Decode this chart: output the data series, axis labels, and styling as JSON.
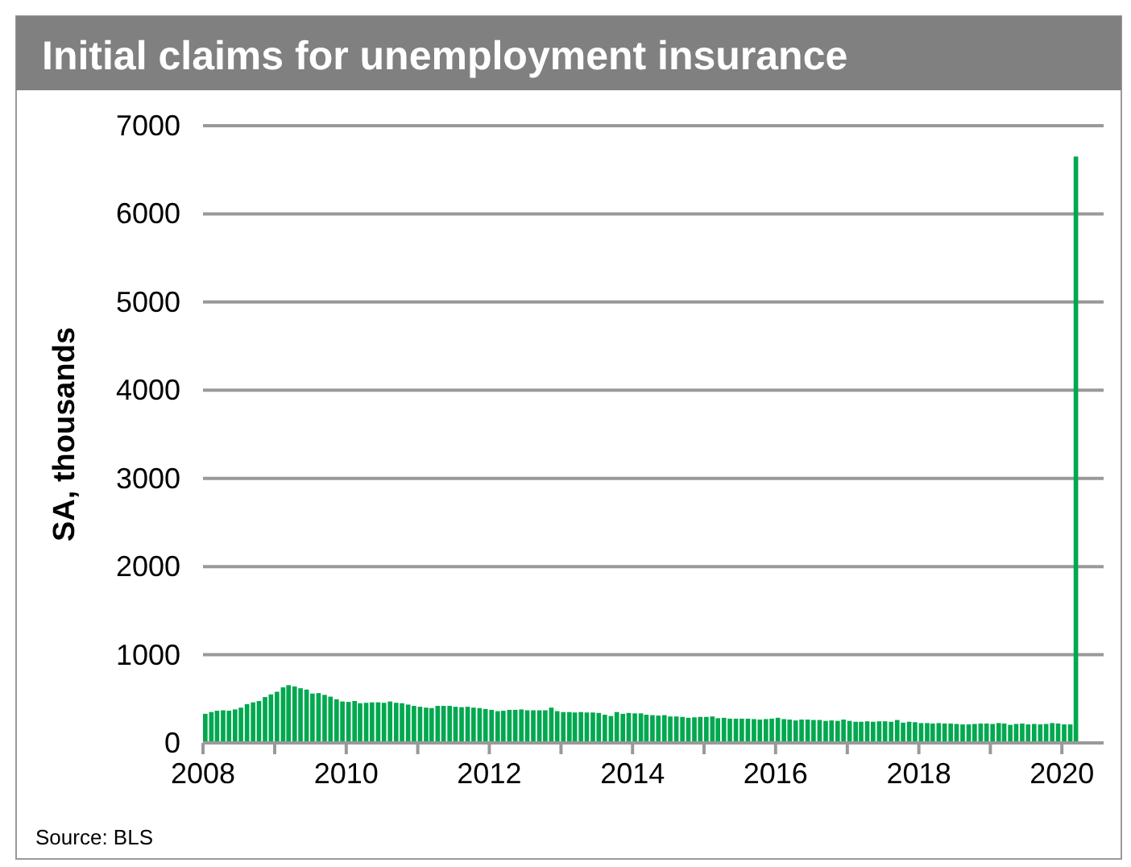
{
  "chart_data": {
    "type": "bar",
    "title": "Initial claims for unemployment insurance",
    "ylabel": "SA, thousands",
    "annotations": [
      "Source: BLS"
    ],
    "x": [
      "2008-01",
      "2008-02",
      "2008-03",
      "2008-04",
      "2008-05",
      "2008-06",
      "2008-07",
      "2008-08",
      "2008-09",
      "2008-10",
      "2008-11",
      "2008-12",
      "2009-01",
      "2009-02",
      "2009-03",
      "2009-04",
      "2009-05",
      "2009-06",
      "2009-07",
      "2009-08",
      "2009-09",
      "2009-10",
      "2009-11",
      "2009-12",
      "2010-01",
      "2010-02",
      "2010-03",
      "2010-04",
      "2010-05",
      "2010-06",
      "2010-07",
      "2010-08",
      "2010-09",
      "2010-10",
      "2010-11",
      "2010-12",
      "2011-01",
      "2011-02",
      "2011-03",
      "2011-04",
      "2011-05",
      "2011-06",
      "2011-07",
      "2011-08",
      "2011-09",
      "2011-10",
      "2011-11",
      "2011-12",
      "2012-01",
      "2012-02",
      "2012-03",
      "2012-04",
      "2012-05",
      "2012-06",
      "2012-07",
      "2012-08",
      "2012-09",
      "2012-10",
      "2012-11",
      "2012-12",
      "2013-01",
      "2013-02",
      "2013-03",
      "2013-04",
      "2013-05",
      "2013-06",
      "2013-07",
      "2013-08",
      "2013-09",
      "2013-10",
      "2013-11",
      "2013-12",
      "2014-01",
      "2014-02",
      "2014-03",
      "2014-04",
      "2014-05",
      "2014-06",
      "2014-07",
      "2014-08",
      "2014-09",
      "2014-10",
      "2014-11",
      "2014-12",
      "2015-01",
      "2015-02",
      "2015-03",
      "2015-04",
      "2015-05",
      "2015-06",
      "2015-07",
      "2015-08",
      "2015-09",
      "2015-10",
      "2015-11",
      "2015-12",
      "2016-01",
      "2016-02",
      "2016-03",
      "2016-04",
      "2016-05",
      "2016-06",
      "2016-07",
      "2016-08",
      "2016-09",
      "2016-10",
      "2016-11",
      "2016-12",
      "2017-01",
      "2017-02",
      "2017-03",
      "2017-04",
      "2017-05",
      "2017-06",
      "2017-07",
      "2017-08",
      "2017-09",
      "2017-10",
      "2017-11",
      "2017-12",
      "2018-01",
      "2018-02",
      "2018-03",
      "2018-04",
      "2018-05",
      "2018-06",
      "2018-07",
      "2018-08",
      "2018-09",
      "2018-10",
      "2018-11",
      "2018-12",
      "2019-01",
      "2019-02",
      "2019-03",
      "2019-04",
      "2019-05",
      "2019-06",
      "2019-07",
      "2019-08",
      "2019-09",
      "2019-10",
      "2019-11",
      "2019-12",
      "2020-01",
      "2020-02",
      "2020-03"
    ],
    "series": [
      {
        "color": "#00a84f",
        "values": [
          330,
          350,
          365,
          370,
          365,
          380,
          400,
          440,
          460,
          475,
          520,
          550,
          580,
          630,
          655,
          640,
          620,
          605,
          560,
          565,
          545,
          525,
          495,
          470,
          465,
          475,
          450,
          455,
          460,
          460,
          455,
          470,
          455,
          450,
          435,
          420,
          410,
          400,
          395,
          420,
          420,
          420,
          410,
          405,
          410,
          400,
          395,
          385,
          375,
          360,
          365,
          375,
          375,
          380,
          370,
          370,
          370,
          370,
          400,
          360,
          350,
          350,
          345,
          350,
          345,
          345,
          340,
          320,
          305,
          350,
          330,
          340,
          335,
          335,
          320,
          315,
          310,
          315,
          300,
          300,
          295,
          285,
          290,
          295,
          295,
          300,
          280,
          285,
          275,
          275,
          275,
          275,
          270,
          265,
          270,
          275,
          285,
          270,
          265,
          255,
          265,
          265,
          260,
          260,
          250,
          255,
          250,
          265,
          250,
          240,
          240,
          245,
          240,
          245,
          245,
          240,
          260,
          230,
          240,
          235,
          225,
          225,
          220,
          225,
          220,
          220,
          215,
          210,
          210,
          215,
          220,
          220,
          215,
          225,
          220,
          205,
          215,
          220,
          210,
          215,
          210,
          215,
          225,
          220,
          210,
          210,
          6650
        ]
      }
    ],
    "xlim": [
      "2008-01",
      "2020-08"
    ],
    "xticks": [
      {
        "value": "2008-01",
        "label": "2008"
      },
      {
        "value": "2009-01",
        "label": null
      },
      {
        "value": "2010-01",
        "label": "2010"
      },
      {
        "value": "2011-01",
        "label": null
      },
      {
        "value": "2012-01",
        "label": "2012"
      },
      {
        "value": "2013-01",
        "label": null
      },
      {
        "value": "2014-01",
        "label": "2014"
      },
      {
        "value": "2015-01",
        "label": null
      },
      {
        "value": "2016-01",
        "label": "2016"
      },
      {
        "value": "2017-01",
        "label": null
      },
      {
        "value": "2018-01",
        "label": "2018"
      },
      {
        "value": "2019-01",
        "label": null
      },
      {
        "value": "2020-01",
        "label": "2020"
      }
    ],
    "ylim": [
      0,
      7000
    ],
    "yticks": [
      0,
      1000,
      2000,
      3000,
      4000,
      5000,
      6000,
      7000
    ],
    "grid": "y"
  }
}
